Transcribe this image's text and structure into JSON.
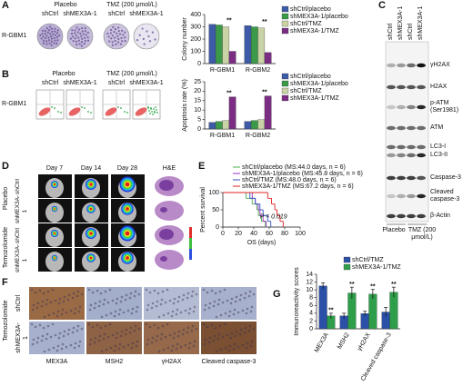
{
  "figure": {
    "panel_labels": [
      "A",
      "B",
      "C",
      "D",
      "E",
      "F",
      "G"
    ],
    "a": {
      "group_labels": [
        "Placebo",
        "TMZ (200 μmol/L)"
      ],
      "lane_labels": [
        "shCtrl",
        "shMEX3A-1",
        "shCtrl",
        "shMEX3A-1"
      ],
      "row_label": "R-GBM1"
    },
    "b": {
      "group_labels": [
        "Placebo",
        "TMZ (200 μmol/L)"
      ],
      "lane_labels": [
        "shCtrl",
        "shMEX3A-1",
        "shCtrl",
        "shMEX3A-1"
      ],
      "row_label": "R-GBM1"
    },
    "c": {
      "lane_labels": [
        "shCtrl",
        "shMEX3A-1",
        "shCtrl",
        "shMEX3A-1"
      ],
      "bands": [
        "γH2AX",
        "H2AX",
        "p-ATM (Ser1981)",
        "ATM",
        "LC3-I",
        "LC3-II",
        "Caspase-3",
        "Cleaved caspase-3",
        "β-Actin"
      ],
      "group_labels": [
        "Placebo",
        "TMZ (200 μmol/L)"
      ]
    },
    "d": {
      "columns": [
        "Day 7",
        "Day 14",
        "Day 28",
        "H&E"
      ],
      "groups": [
        "Placebo",
        "Temozolomide"
      ],
      "rows": [
        "shCtrl",
        "shMEX3A-1",
        "shCtrl",
        "shMEX3A-1"
      ]
    },
    "f": {
      "group": "Temozolomide",
      "rows": [
        "shCtrl",
        "shMEX3A-1"
      ],
      "columns": [
        "MEX3A",
        "MSH2",
        "γH2AX",
        "Cleaved caspase-3"
      ]
    }
  },
  "chart_data": [
    {
      "type": "bar",
      "ylabel": "Colony number",
      "categories": [
        "R-GBM1",
        "R-GBM2"
      ],
      "series": [
        {
          "name": "shCtrl/placebo",
          "color": "#3c5aa6",
          "values": [
            320,
            310
          ]
        },
        {
          "name": "shMEX3A-1/placebo",
          "color": "#3a9a48",
          "values": [
            315,
            300
          ]
        },
        {
          "name": "shCtrl/TMZ",
          "color": "#c9d3a5",
          "values": [
            300,
            290
          ]
        },
        {
          "name": "shMEX3A-1/TMZ",
          "color": "#7b2d83",
          "values": [
            100,
            90
          ]
        }
      ],
      "ylim": [
        0,
        400
      ],
      "yticks": [
        0,
        100,
        200,
        300,
        400
      ],
      "annotations": [
        "**",
        "**"
      ]
    },
    {
      "type": "bar",
      "ylabel": "Apoptosis rate (%)",
      "categories": [
        "R-GBM1",
        "R-GBM2"
      ],
      "series": [
        {
          "name": "shCtrl/placebo",
          "color": "#3c5aa6",
          "values": [
            3.5,
            4
          ]
        },
        {
          "name": "shMEX3A-1/placebo",
          "color": "#3a9a48",
          "values": [
            4,
            4.5
          ]
        },
        {
          "name": "shCtrl/TMZ",
          "color": "#c9d3a5",
          "values": [
            4.5,
            5
          ]
        },
        {
          "name": "shMEX3A-1/TMZ",
          "color": "#7b2d83",
          "values": [
            17,
            17.5
          ]
        }
      ],
      "ylim": [
        0,
        25
      ],
      "yticks": [
        0,
        5,
        10,
        15,
        20,
        25
      ],
      "annotations": [
        "**",
        "**"
      ]
    },
    {
      "type": "survival",
      "xlabel": "OS (days)",
      "ylabel": "Percent survival",
      "annotation": "P = 0.019",
      "series": [
        {
          "name": "shCtrl/placebo (MS:44.0 days, n = 6)",
          "color": "#4caf50",
          "x": [
            0,
            30,
            38,
            44,
            46,
            50,
            55
          ],
          "values": [
            100,
            83.3,
            66.7,
            50,
            33.3,
            16.7,
            0
          ]
        },
        {
          "name": "shMEX3A-1/placebo (MS:45.8 days, n = 6)",
          "color": "#9b30c0",
          "x": [
            0,
            38,
            42,
            45.8,
            48,
            52,
            56
          ],
          "values": [
            100,
            83.3,
            66.7,
            50,
            33.3,
            16.7,
            0
          ]
        },
        {
          "name": "shCtrl/TMZ (MS:48.0 days, n = 6)",
          "color": "#3050c0",
          "x": [
            0,
            35,
            42,
            48,
            52,
            58,
            62
          ],
          "values": [
            100,
            83.3,
            66.7,
            50,
            33.3,
            16.7,
            0
          ]
        },
        {
          "name": "shMEX3A-1/TMZ (MS:67.2 days, n = 6)",
          "color": "#e02020",
          "x": [
            0,
            58,
            63,
            67.2,
            70,
            74,
            78
          ],
          "values": [
            100,
            83.3,
            66.7,
            50,
            33.3,
            16.7,
            0
          ]
        }
      ],
      "xlim": [
        0,
        100
      ],
      "xticks": [
        0,
        20,
        40,
        60,
        80,
        100
      ],
      "ylim": [
        0,
        100
      ],
      "yticks": [
        0,
        50,
        100
      ]
    },
    {
      "type": "bar",
      "ylabel": "Immunoreactivity scores",
      "categories": [
        "MEX3A",
        "MSH2",
        "γH2AX",
        "Cleaved caspase-3"
      ],
      "series": [
        {
          "name": "shCtrl/TMZ",
          "color": "#2a50a8",
          "values": [
            11,
            3.3,
            3.9,
            4.3
          ],
          "errors": [
            0.8,
            0.7,
            0.6,
            1.2
          ]
        },
        {
          "name": "shMEX3A-1/TMZ",
          "color": "#2e9e4a",
          "values": [
            3.3,
            9.2,
            8.9,
            9.4
          ],
          "errors": [
            0.7,
            1.5,
            1.2,
            1.3
          ]
        }
      ],
      "ylim": [
        0,
        14
      ],
      "yticks": [
        0,
        2,
        4,
        6,
        8,
        10,
        12,
        14
      ],
      "annotations": [
        "**",
        "**",
        "**",
        "**"
      ]
    }
  ]
}
